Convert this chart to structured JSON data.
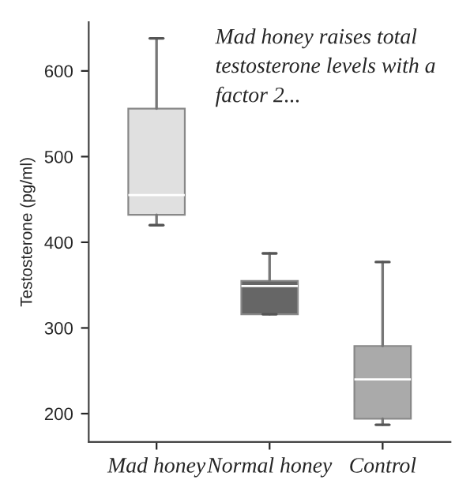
{
  "chart_data": {
    "type": "box",
    "ylabel": "Testosterone (pg/ml)",
    "categories": [
      "Mad honey",
      "Normal honey",
      "Control"
    ],
    "colors": [
      "#e0e0e0",
      "#666666",
      "#aaaaaa"
    ],
    "boxes": [
      {
        "low": 420,
        "q1": 432,
        "median": 455,
        "q3": 556,
        "high": 638
      },
      {
        "low": 316,
        "q1": 316,
        "median": 349,
        "q3": 355,
        "high": 387
      },
      {
        "low": 187,
        "q1": 194,
        "median": 240,
        "q3": 279,
        "high": 377
      }
    ],
    "ylim": [
      167,
      657
    ],
    "yticks": [
      200,
      300,
      400,
      500,
      600
    ],
    "grid": false,
    "annotations": [
      "Mad honey raises total testosterone levels with a factor 2..."
    ]
  }
}
